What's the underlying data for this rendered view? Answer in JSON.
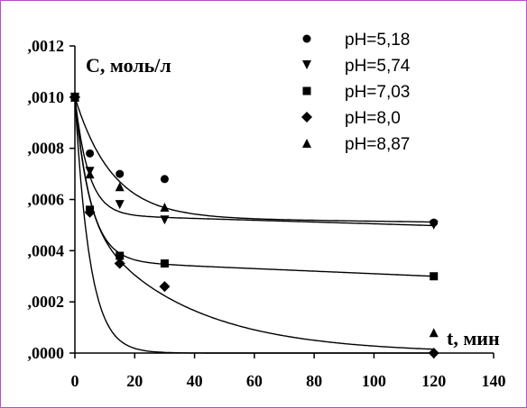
{
  "chart_data": {
    "type": "scatter",
    "title": "",
    "ylabel": "C, моль/л",
    "xlabel": "t, мин",
    "xlim": [
      0,
      140
    ],
    "ylim": [
      0,
      0.0012
    ],
    "xticks": [
      0,
      20,
      40,
      60,
      80,
      100,
      120,
      140
    ],
    "xtick_labels": [
      "0",
      "20",
      "40",
      "60",
      "80",
      "100",
      "120",
      "140"
    ],
    "yticks": [
      0,
      0.0002,
      0.0004,
      0.0006,
      0.0008,
      0.001,
      0.0012
    ],
    "ytick_labels": [
      ",0000",
      ",0002",
      ",0004",
      ",0006",
      ",0008",
      ",0010",
      ",0012"
    ],
    "grid": false,
    "legend_position": "top-right",
    "trend_lines": true,
    "series": [
      {
        "name": "pH=5,18",
        "marker": "circle",
        "x": [
          0,
          5,
          15,
          30,
          120
        ],
        "y": [
          0.001,
          0.00078,
          0.0007,
          0.00068,
          0.00051
        ],
        "trend": {
          "c0": 0.001,
          "cinf": 0.00053,
          "k": 0.08,
          "slope": 1.5e-07
        }
      },
      {
        "name": "pH=5,74",
        "marker": "triangle-down",
        "x": [
          0,
          5,
          15,
          30,
          120
        ],
        "y": [
          0.001,
          0.00071,
          0.00058,
          0.00052,
          0.0005
        ],
        "trend": {
          "c0": 0.001,
          "cinf": 0.00054,
          "k": 0.22,
          "slope": 3.5e-07
        }
      },
      {
        "name": "pH=7,03",
        "marker": "square",
        "x": [
          0,
          5,
          15,
          30,
          120
        ],
        "y": [
          0.001,
          0.00056,
          0.00038,
          0.00035,
          0.0003
        ],
        "trend": {
          "c0": 0.001,
          "cinf": 0.00036,
          "k": 0.19,
          "slope": 5e-07
        }
      },
      {
        "name": "pH=8,0",
        "marker": "diamond",
        "x": [
          0,
          5,
          15,
          30,
          120
        ],
        "y": [
          0.001,
          0.00055,
          0.00035,
          0.00026,
          0.0
        ],
        "trend": {
          "c0": 0.001,
          "cinf": 0.0,
          "k": 0.03,
          "fast": 0.00055,
          "kf": 0.25
        }
      },
      {
        "name": "pH=8,87",
        "marker": "triangle-up",
        "x": [
          0,
          5,
          15,
          30,
          120
        ],
        "y": [
          0.001,
          0.0007,
          0.00065,
          0.00057,
          8e-05
        ],
        "trend": {
          "c0": 0.001,
          "cinf": 0.0,
          "k": 0.021,
          "fast": 0.0,
          "kf": 0.2
        }
      }
    ]
  }
}
